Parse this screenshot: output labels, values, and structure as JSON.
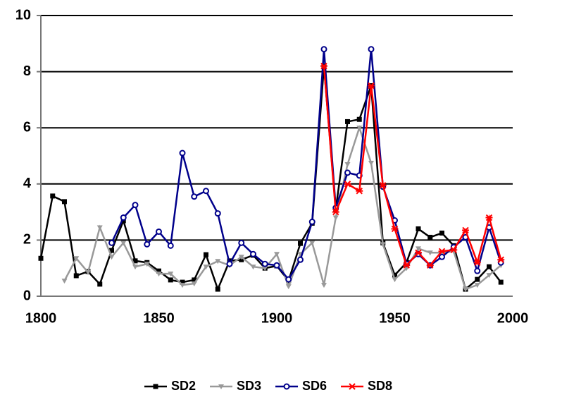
{
  "chart_data": {
    "type": "line",
    "x": [
      1800,
      1805,
      1810,
      1815,
      1820,
      1825,
      1830,
      1835,
      1840,
      1845,
      1850,
      1855,
      1860,
      1865,
      1870,
      1875,
      1880,
      1885,
      1890,
      1895,
      1900,
      1905,
      1910,
      1915,
      1920,
      1925,
      1930,
      1935,
      1940,
      1945,
      1950,
      1955,
      1960,
      1965,
      1970,
      1975,
      1980,
      1985,
      1990,
      1995
    ],
    "series": [
      {
        "name": "SD2",
        "color": "#000000",
        "marker": "square",
        "values": [
          1.35,
          3.57,
          3.37,
          0.73,
          0.88,
          0.43,
          1.63,
          2.69,
          1.26,
          1.2,
          0.9,
          0.58,
          0.5,
          0.58,
          1.48,
          0.25,
          1.26,
          1.3,
          1.46,
          1.0,
          1.08,
          0.55,
          1.88,
          2.6,
          8.2,
          3.1,
          6.22,
          6.3,
          7.5,
          1.9,
          0.75,
          1.2,
          2.4,
          2.1,
          2.25,
          1.8,
          0.25,
          0.6,
          1.05,
          0.5
        ]
      },
      {
        "name": "SD3",
        "color": "#999999",
        "marker": "triangle",
        "values": [
          null,
          null,
          0.55,
          1.35,
          0.85,
          2.45,
          1.4,
          1.9,
          1.05,
          1.15,
          0.8,
          0.8,
          0.4,
          0.45,
          1.05,
          1.25,
          1.1,
          1.4,
          1.05,
          1.0,
          1.5,
          0.35,
          1.5,
          1.9,
          0.4,
          2.8,
          4.7,
          6.0,
          4.75,
          1.85,
          0.6,
          1.0,
          1.7,
          1.55,
          1.55,
          1.6,
          0.25,
          0.4,
          0.75,
          1.1
        ]
      },
      {
        "name": "SD6",
        "color": "#00008b",
        "marker": "circle",
        "values": [
          null,
          null,
          null,
          null,
          null,
          null,
          1.9,
          2.8,
          3.25,
          1.85,
          2.3,
          1.8,
          5.1,
          3.55,
          3.75,
          2.95,
          1.15,
          1.9,
          1.5,
          1.15,
          1.1,
          0.6,
          1.3,
          2.65,
          8.8,
          3.15,
          4.4,
          4.3,
          8.8,
          3.9,
          2.7,
          1.15,
          1.5,
          1.1,
          1.4,
          1.75,
          2.1,
          0.9,
          2.45,
          1.2
        ]
      },
      {
        "name": "SD8",
        "color": "#ff0000",
        "marker": "star",
        "values": [
          null,
          null,
          null,
          null,
          null,
          null,
          null,
          null,
          null,
          null,
          null,
          null,
          null,
          null,
          null,
          null,
          null,
          null,
          null,
          null,
          null,
          null,
          null,
          null,
          8.2,
          3.0,
          4.0,
          3.75,
          7.5,
          3.95,
          2.4,
          1.1,
          1.55,
          1.1,
          1.6,
          1.65,
          2.35,
          1.2,
          2.8,
          1.3
        ]
      }
    ],
    "xlim": [
      1800,
      2000
    ],
    "xticks": [
      1800,
      1850,
      1900,
      1950,
      2000
    ],
    "ylim": [
      0,
      10
    ],
    "yticks": [
      0,
      2,
      4,
      6,
      8,
      10
    ],
    "grid": true,
    "legend": "bottom"
  }
}
